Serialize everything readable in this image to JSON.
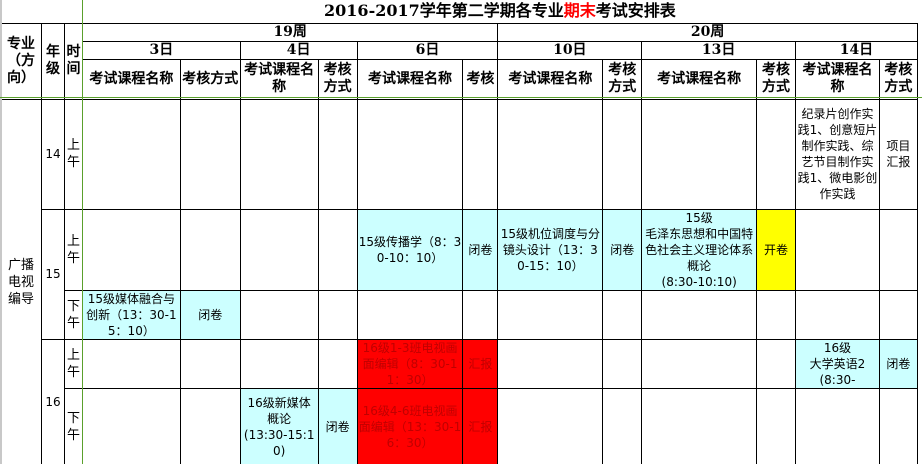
{
  "title": {
    "prefix": "2016-2017学年第二学期各专业",
    "highlight": "期末",
    "suffix": "考试安排表",
    "highlight_color": "#ff0000"
  },
  "left_headers": {
    "major": "专业（方向）",
    "grade": "年级",
    "time": "时间"
  },
  "weeks": [
    "19周",
    "20周"
  ],
  "days": [
    "3日",
    "4日",
    "6日",
    "10日",
    "13日",
    "14日"
  ],
  "col_headers": {
    "course": "考试课程名称",
    "method": "考核方式",
    "method_short": "考核"
  },
  "major": "广播电视编导",
  "colors": {
    "cyan": "#ccffff",
    "yellow": "#ffff00",
    "red": "#ff0000",
    "grid_freeze": "#5aa02c"
  },
  "rows": [
    {
      "grade": "14",
      "time": "上午",
      "cells": [
        {
          "name": "",
          "method": ""
        },
        {
          "name": "",
          "method": ""
        },
        {
          "name": "",
          "method": ""
        },
        {
          "name": "",
          "method": ""
        },
        {
          "name": "",
          "method": ""
        },
        {
          "name": "纪录片创作实践1、创意短片制作实践、综艺节目制作实践1、微电影创作实践",
          "method": "项目汇报"
        }
      ]
    },
    {
      "grade": "15",
      "time": "上午",
      "cells": [
        {
          "name": "",
          "method": ""
        },
        {
          "name": "",
          "method": ""
        },
        {
          "name": "15级传播学（8：30-10：10）",
          "method": "闭卷",
          "color": "cyan"
        },
        {
          "name": "15级机位调度与分镜头设计（13：30-15：10）",
          "method": "闭卷",
          "color": "cyan"
        },
        {
          "name": "15级\n毛泽东思想和中国特色社会主义理论体系概论\n(8:30-10:10)",
          "method": "开卷",
          "color": "cyan",
          "method_color": "yellow"
        },
        {
          "name": "",
          "method": ""
        }
      ]
    },
    {
      "grade": "",
      "time": "下午",
      "cells": [
        {
          "name": "15级媒体融合与创新（13：30-15：10）",
          "method": "闭卷",
          "color": "cyan"
        },
        {
          "name": "",
          "method": ""
        },
        {
          "name": "",
          "method": ""
        },
        {
          "name": "",
          "method": ""
        },
        {
          "name": "",
          "method": ""
        },
        {
          "name": "",
          "method": ""
        }
      ]
    },
    {
      "grade": "16",
      "time": "上午",
      "cells": [
        {
          "name": "",
          "method": ""
        },
        {
          "name": "",
          "method": ""
        },
        {
          "name": "16级1-3班电视画面编辑（8：30-11：30）",
          "method": "汇报",
          "color": "red"
        },
        {
          "name": "",
          "method": ""
        },
        {
          "name": "",
          "method": ""
        },
        {
          "name": "16级\n大学英语2\n(8:30-",
          "method": "闭卷",
          "color": "cyan"
        }
      ]
    },
    {
      "grade": "",
      "time": "下午",
      "cells": [
        {
          "name": "",
          "method": ""
        },
        {
          "name": "16级新媒体概论\n(13:30-15:10)",
          "method": "闭卷",
          "color": "cyan"
        },
        {
          "name": "16级4-6班电视画面编辑（13：30-16：30）",
          "method": "汇报",
          "color": "red"
        },
        {
          "name": "",
          "method": ""
        },
        {
          "name": "",
          "method": ""
        },
        {
          "name": "",
          "method": ""
        }
      ]
    }
  ]
}
